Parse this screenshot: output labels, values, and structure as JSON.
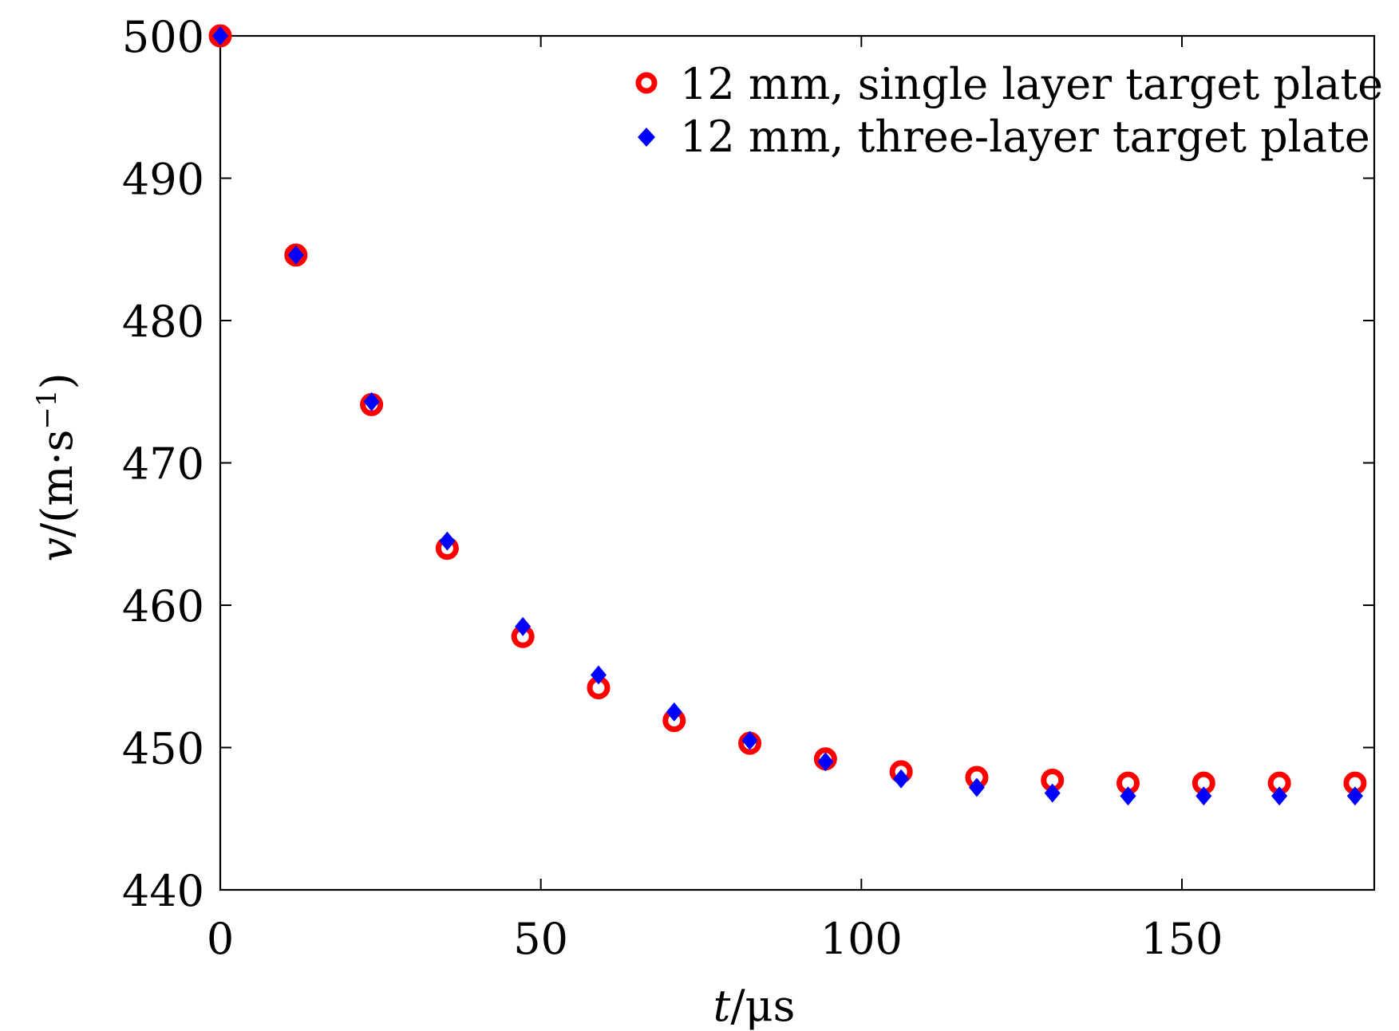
{
  "chart_data": {
    "type": "scatter",
    "title": "",
    "xlabel_italic": "t",
    "xlabel_rest": "/μs",
    "ylabel_italic": "v",
    "ylabel_rest": "/(m·s",
    "ylabel_sup": "−1",
    "ylabel_close": ")",
    "xlim": [
      0,
      180
    ],
    "ylim": [
      440,
      500
    ],
    "xticks": [
      0,
      50,
      100,
      150
    ],
    "xtick_labels": [
      "0",
      "50",
      "100",
      "150"
    ],
    "yticks": [
      440,
      450,
      460,
      470,
      480,
      490,
      500
    ],
    "ytick_labels": [
      "440",
      "450",
      "460",
      "470",
      "480",
      "490",
      "500"
    ],
    "grid": false,
    "legend_position": "top-right",
    "series": [
      {
        "name": "12 mm, single layer target plate",
        "marker": "open-circle",
        "color": "#ff0000",
        "x": [
          0,
          11.8,
          23.6,
          35.4,
          47.2,
          59,
          70.8,
          82.6,
          94.4,
          106.2,
          118,
          129.8,
          141.6,
          153.4,
          165.2,
          177
        ],
        "y": [
          500,
          484.6,
          474.1,
          464.0,
          457.8,
          454.2,
          451.9,
          450.3,
          449.2,
          448.3,
          447.9,
          447.7,
          447.5,
          447.5,
          447.5,
          447.5
        ]
      },
      {
        "name": "12 mm, three-layer target plate",
        "marker": "filled-diamond",
        "color": "#0000ff",
        "x": [
          0,
          11.8,
          23.6,
          35.4,
          47.2,
          59,
          70.8,
          82.6,
          94.4,
          106.2,
          118,
          129.8,
          141.6,
          153.4,
          165.2,
          177
        ],
        "y": [
          500,
          484.6,
          474.3,
          464.5,
          458.5,
          455.1,
          452.5,
          450.5,
          449.0,
          447.8,
          447.2,
          446.8,
          446.6,
          446.6,
          446.6,
          446.6
        ]
      }
    ]
  }
}
